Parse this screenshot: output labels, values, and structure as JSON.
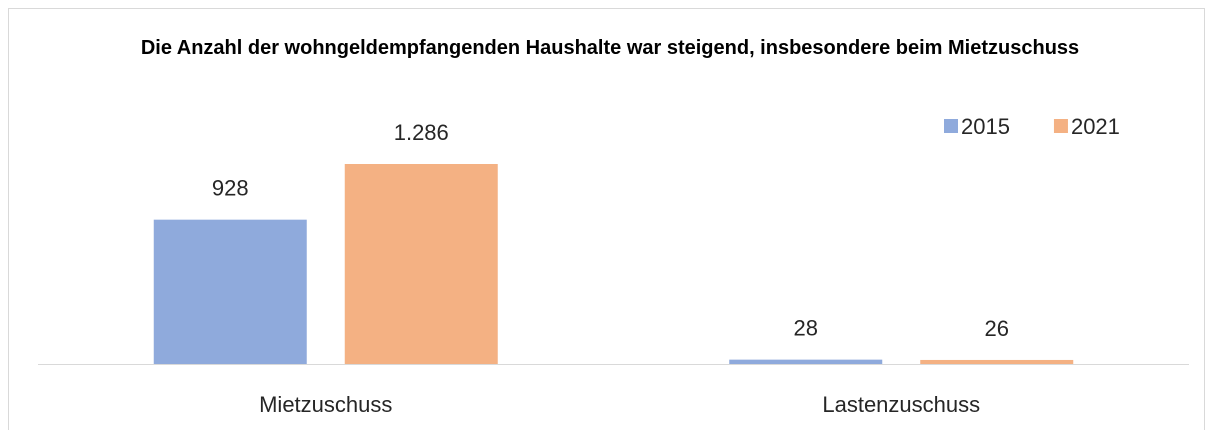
{
  "chart_data": {
    "type": "bar",
    "title": "Die Anzahl der wohngeldempfangenden Haushalte war steigend, insbesondere beim Mietzuschuss",
    "categories": [
      "Mietzuschuss",
      "Lastenzuschuss"
    ],
    "series": [
      {
        "name": "2015",
        "color": "#8faadc",
        "values": [
          928,
          28
        ]
      },
      {
        "name": "2021",
        "color": "#f4b183",
        "values": [
          1286,
          26
        ],
        "value_labels": [
          "1.286",
          "26"
        ]
      }
    ],
    "legend": "top-right"
  }
}
